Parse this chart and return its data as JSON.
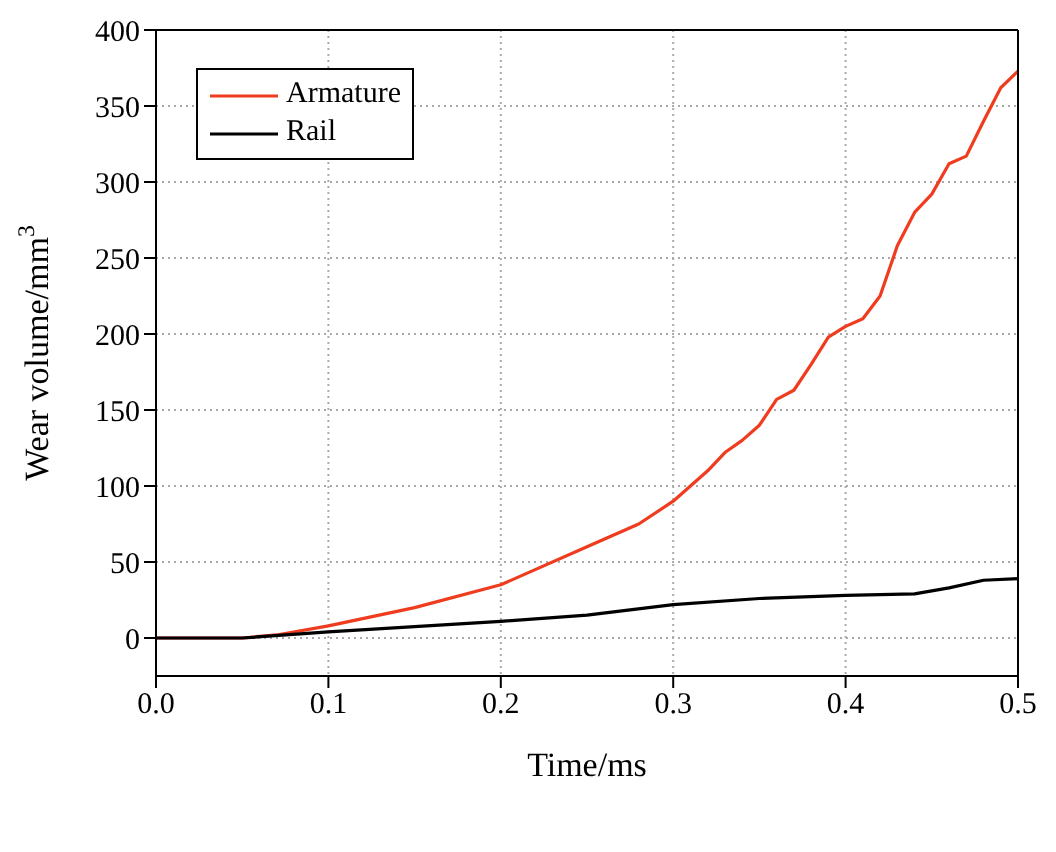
{
  "chart_data": {
    "type": "line",
    "xlabel": "Time/ms",
    "ylabel": "Wear volume/mm$^{3}$",
    "xlim": [
      0,
      0.5
    ],
    "xticks": [
      {
        "value": 0,
        "label": "0.0"
      },
      0.1,
      0.2,
      0.3,
      0.4,
      0.5
    ],
    "ylim": [
      -25,
      400
    ],
    "yticks": [
      0,
      50,
      100,
      150,
      200,
      250,
      300,
      350,
      400
    ],
    "grid": true,
    "legend": "top left",
    "line_style": "solid",
    "marker": "none",
    "series": [
      {
        "name": "Armature",
        "color": "#f03c1e",
        "x": [
          0,
          0.05,
          0.07,
          0.1,
          0.15,
          0.2,
          0.25,
          0.28,
          0.3,
          0.32,
          0.33,
          0.34,
          0.35,
          0.36,
          0.37,
          0.38,
          0.39,
          0.4,
          0.41,
          0.42,
          0.43,
          0.44,
          0.45,
          0.46,
          0.47,
          0.48,
          0.49,
          0.5
        ],
        "values": [
          0,
          0,
          2,
          8,
          20,
          35,
          60,
          75,
          90,
          110,
          122,
          130,
          140,
          157,
          163,
          180,
          198,
          205,
          210,
          225,
          258,
          280,
          292,
          312,
          317,
          340,
          362,
          373
        ]
      },
      {
        "name": "Rail",
        "color": "#000000",
        "x": [
          0,
          0.05,
          0.1,
          0.2,
          0.25,
          0.3,
          0.35,
          0.4,
          0.44,
          0.46,
          0.48,
          0.5
        ],
        "values": [
          0,
          0,
          4,
          11,
          15,
          22,
          26,
          28,
          29,
          33,
          38,
          39
        ]
      }
    ]
  }
}
